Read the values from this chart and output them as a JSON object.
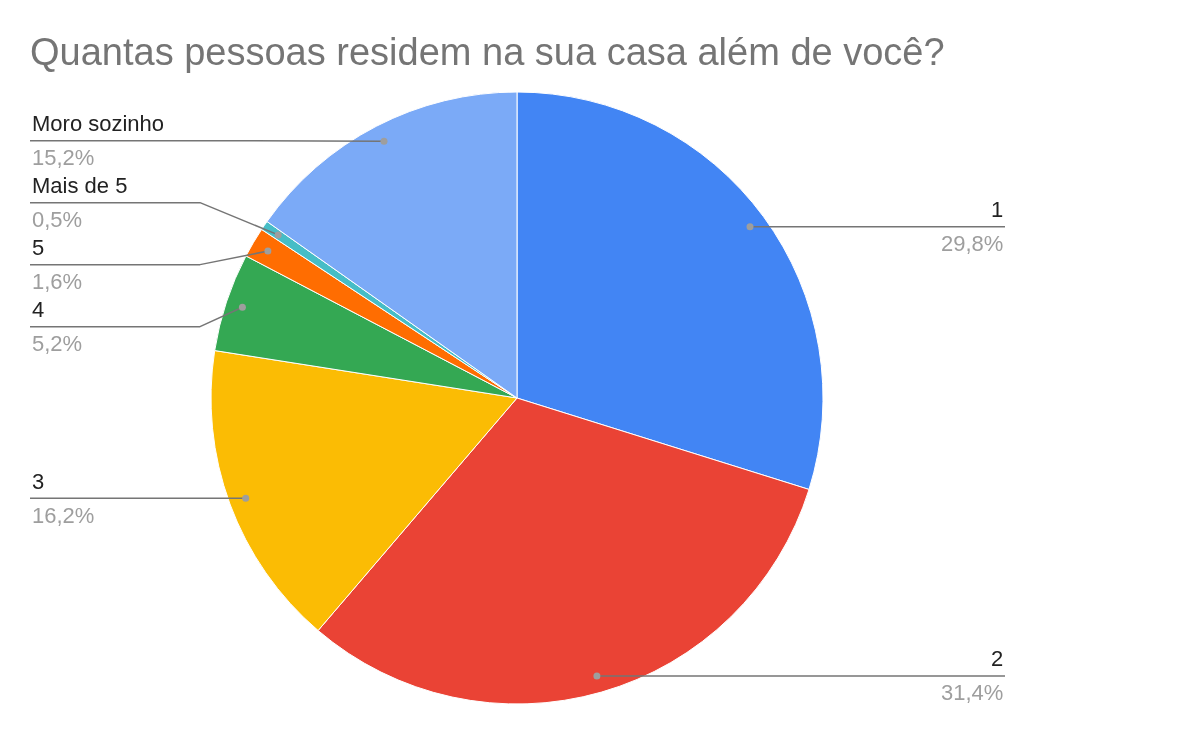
{
  "chart_data": {
    "type": "pie",
    "title": "Quantas pessoas residem na sua casa além de você?",
    "categories": [
      "1",
      "2",
      "3",
      "4",
      "5",
      "Mais de 5",
      "Moro sozinho"
    ],
    "values": [
      29.8,
      31.4,
      16.2,
      5.2,
      1.6,
      0.5,
      15.2
    ],
    "colors": [
      "#4285f4",
      "#ea4335",
      "#fbbc04",
      "#34a853",
      "#ff6d01",
      "#46bdc6",
      "#7baaf7"
    ],
    "value_labels": [
      "29,8%",
      "31,4%",
      "16,2%",
      "5,2%",
      "1,6%",
      "0,5%",
      "15,2%"
    ]
  }
}
